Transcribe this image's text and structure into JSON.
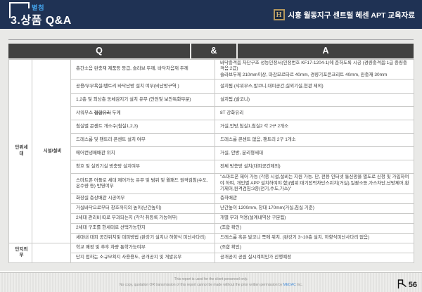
{
  "header": {
    "badge": "별첨",
    "title": "3.상품 Q&A",
    "brand": {
      "logo_letter": "H",
      "text": "시흥 월동지구 센트럴 헤센 APT 교육자료"
    }
  },
  "table": {
    "columns": {
      "q": "Q",
      "amp": "&",
      "a": "A"
    },
    "sections": [
      {
        "category": "단위세대",
        "subcategory": "시설/설비",
        "rows": [
          {
            "q": "층간소음 완충재 제품등 등급, 슬라브 두께, 바닥차음재 두께",
            "a": "바닥충격음 차단구조 성능인정서(인정번호 KF17-1204-1)에 준하도록 시공 (경량충격음:1급 중량충격음:2급)\n슬라브두께 210mm이상, 마감모르타르 40mm, 경량기포콘크리트 40mm, 완충재 30mm"
          },
          {
            "q": "공용/부부욕실/팬트리 바닥난방 설치 여부(비난방구역 )",
            "a": "설치됨.(샤워부스,발코니,대피공간,실외기실,현관 제외)"
          },
          {
            "q": "1,2층 및 최상층 동체감지기 설치 유무 (안전및 보안특화부분)",
            "a": "설치됨.(발코니)"
          },
          {
            "q_pre": "샤워부스 ",
            "q_strike": "접합유리",
            "q_post": " 두께",
            "a": "8T 강화유리"
          },
          {
            "q": "침실별 콘센트 개소수(침실1,2,3)",
            "a": "거실,안방,침실1,침실2 각 2구 2개소"
          },
          {
            "q": "드레스룸 및 팬트리 콘센트 설치 여부",
            "a": "드레스룸 콘센트 없음, 팬트리 2구 1개소"
          },
          {
            "q": "에어컨냉매배관 위치",
            "a": "거실, 안방, 분리형세대"
          },
          {
            "q": "창호 및 실외기실 방충망 설치여부",
            "a": "전체 방충망 설치(대피공간제외)"
          },
          {
            "q": "스마트폰 어플로 세대 제어가능 유무 및 범위 및 월패드 원격검침(수도,온수량 등) 반영여부",
            "a": "\"스마트폰 제어 가능 (각종 시설,설비는 지원 가능. 단, 전용 인터넷 통신망을 별도로 신청 및 가입하여야 하며, 개인별 APP 설치하여야 함)(범위:대기전력차단스위치(거실),일괄소등,가스차단,난방제어,환기제어,원격검침:3종(전기,수도,가스)\""
          },
          {
            "q": "화장실 층상배관 시공여부",
            "a": "층하배관"
          },
          {
            "q": "거실바닥으로부터 창호까지의 높이(난간높이)",
            "a": "난간높이 1200mm, 창대 170mm(거실,침실 기준)"
          },
          {
            "q": "2세대  관리비 따로 부과되는지 (각각 취등록 가능여부)",
            "a": "개별 부과 적용(설계내역상 구분됨)"
          },
          {
            "q": "2세대 구조를 한세대로 선택가능한지",
            "a": "(조합 확인)",
            "a_red": true
          },
          {
            "q": "세대내 대피 공간위치및 대피방법 (완강기 설치나 하향식 피난사다리)",
            "a": "드레스룸 혹은 발코니 쪽에 위치. (완강기 3~10층 설치, 하향식피난사다리 없음)"
          }
        ]
      },
      {
        "category": "단지외부",
        "subcategory": "",
        "rows": [
          {
            "q": "학교 배정 및 추후 차량 통학가능여부",
            "a": "(조합 확인)",
            "a_red": true
          },
          {
            "q": "단지 접하는 소규모획지 사용용도, 공개공지 및 개발유무",
            "a": "공개공지 공원 실시계획인가 진행예정"
          }
        ]
      }
    ]
  },
  "footer": {
    "line1": "This report is used for the client personnel only.",
    "line2_pre": "No copy, quotation OR transmission of this report cannot be made without the prior written permission by ",
    "company": "MEDAC",
    "company_suffix": " Inc.",
    "page_number": "56"
  },
  "colors": {
    "navy": "#1f3254",
    "badge_blue": "#45a7f0",
    "gold": "#b4975e",
    "table_header": "#414140",
    "category_gray": "#59595a",
    "subcategory_gray": "#c8c8c6",
    "alert_red": "#e63428",
    "page_bg": "#e9e9e7"
  }
}
